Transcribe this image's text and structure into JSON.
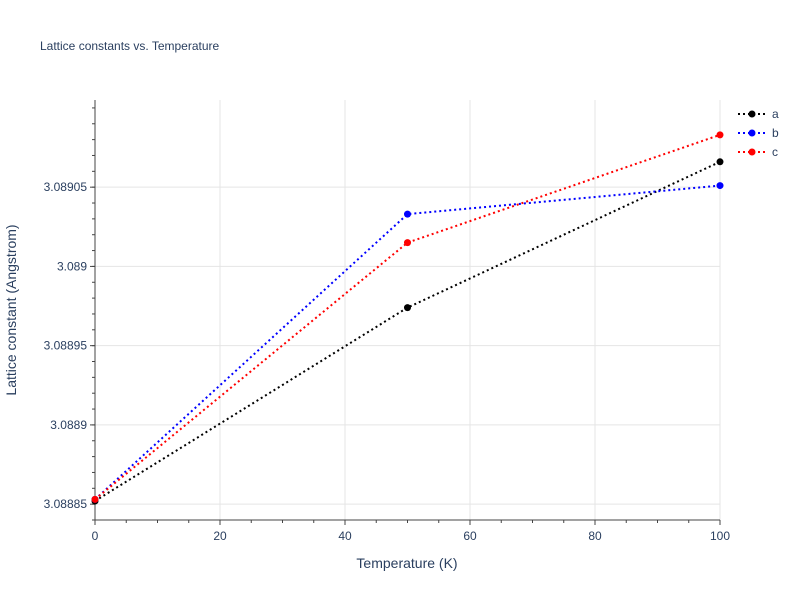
{
  "chart_data": {
    "type": "line",
    "title": "Lattice constants vs. Temperature",
    "xlabel": "Temperature (K)",
    "ylabel": "Lattice constant (Angstrom)",
    "xlim": [
      0,
      100
    ],
    "ylim": [
      3.08884,
      3.089105
    ],
    "x_ticks": [
      0,
      20,
      40,
      60,
      80,
      100
    ],
    "x_tick_labels": [
      "0",
      "20",
      "40",
      "60",
      "80",
      "100"
    ],
    "y_ticks": [
      3.08885,
      3.0889,
      3.08895,
      3.089,
      3.08905
    ],
    "y_tick_labels": [
      "3.08885",
      "3.0889",
      "3.08895",
      "3.089",
      "3.08905"
    ],
    "grid": true,
    "legend_position": "top-right",
    "x": [
      0,
      50,
      100
    ],
    "series": [
      {
        "name": "a",
        "color": "#000000",
        "values": [
          3.088852,
          3.088974,
          3.089066
        ]
      },
      {
        "name": "b",
        "color": "#0000ff",
        "values": [
          3.088853,
          3.089033,
          3.089051
        ]
      },
      {
        "name": "c",
        "color": "#ff0000",
        "values": [
          3.088853,
          3.089015,
          3.089083
        ]
      }
    ]
  }
}
